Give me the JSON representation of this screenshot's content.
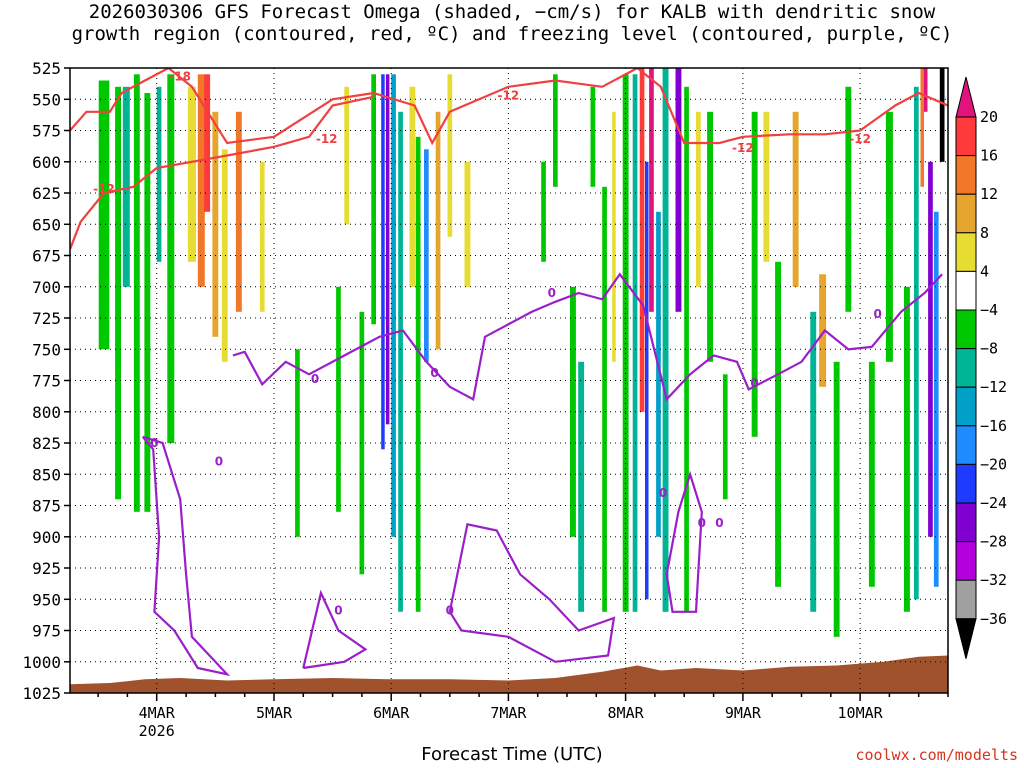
{
  "chart_data": {
    "type": "heatmap",
    "title_line1": "2026030306 GFS Forecast Omega (shaded, −cm/s) for KALB with dendritic snow",
    "title_line2": "growth region (contoured, red, ºC) and freezing level (contoured, purple, ºC)",
    "xlabel": "Forecast Time (UTC)",
    "ylabel": "",
    "credit": "coolwx.com/modelts",
    "y_ticks": [
      "525",
      "550",
      "575",
      "600",
      "625",
      "650",
      "675",
      "700",
      "725",
      "750",
      "775",
      "800",
      "825",
      "850",
      "875",
      "900",
      "925",
      "950",
      "975",
      "1000",
      "1025"
    ],
    "y_range_hpa": [
      525,
      1025
    ],
    "x_range_days": [
      3.26,
      10.75
    ],
    "x_ticks": [
      {
        "label": "4MAR",
        "sub": "2026",
        "day": 4
      },
      {
        "label": "5MAR",
        "sub": "",
        "day": 5
      },
      {
        "label": "6MAR",
        "sub": "",
        "day": 6
      },
      {
        "label": "7MAR",
        "sub": "",
        "day": 7
      },
      {
        "label": "8MAR",
        "sub": "",
        "day": 8
      },
      {
        "label": "9MAR",
        "sub": "",
        "day": 9
      },
      {
        "label": "10MAR",
        "sub": "",
        "day": 10
      }
    ],
    "colorbar": {
      "labels": [
        "20",
        "16",
        "12",
        "8",
        "4",
        "−4",
        "−8",
        "−12",
        "−16",
        "−20",
        "−24",
        "−28",
        "−32",
        "−36"
      ],
      "colors": [
        "#e0147c",
        "#ff3a3a",
        "#f07828",
        "#e6a52c",
        "#e6dc32",
        "#ffffff",
        "#00c800",
        "#00b496",
        "#00a0c8",
        "#1e8cff",
        "#1e3cff",
        "#8000d2",
        "#b400dc",
        "#a0a0a0"
      ]
    },
    "contour_labels_red": [
      "-18",
      "-12",
      "-12",
      "-12",
      "-12",
      "-12"
    ],
    "contour_labels_purple": [
      "0",
      "0",
      "0",
      "0",
      "0",
      "0",
      "0",
      "0",
      "0",
      "0",
      "0",
      "0"
    ],
    "omega_columns": [
      {
        "day": 3.55,
        "width": 0.09,
        "top": 535,
        "bottom": 750,
        "color": "#00c800"
      },
      {
        "day": 3.67,
        "width": 0.05,
        "top": 540,
        "bottom": 870,
        "color": "#00c800"
      },
      {
        "day": 3.74,
        "width": 0.06,
        "top": 540,
        "bottom": 700,
        "color": "#00b496"
      },
      {
        "day": 3.83,
        "width": 0.05,
        "top": 530,
        "bottom": 880,
        "color": "#00c800"
      },
      {
        "day": 3.92,
        "width": 0.05,
        "top": 545,
        "bottom": 880,
        "color": "#00c800"
      },
      {
        "day": 4.02,
        "width": 0.04,
        "top": 540,
        "bottom": 680,
        "color": "#00b496"
      },
      {
        "day": 4.12,
        "width": 0.06,
        "top": 530,
        "bottom": 825,
        "color": "#00c800"
      },
      {
        "day": 4.3,
        "width": 0.07,
        "top": 540,
        "bottom": 680,
        "color": "#e6dc32"
      },
      {
        "day": 4.38,
        "width": 0.06,
        "top": 530,
        "bottom": 700,
        "color": "#f07828"
      },
      {
        "day": 4.43,
        "width": 0.05,
        "top": 530,
        "bottom": 640,
        "color": "#ff3a3a"
      },
      {
        "day": 4.5,
        "width": 0.05,
        "top": 560,
        "bottom": 740,
        "color": "#e6a52c"
      },
      {
        "day": 4.58,
        "width": 0.05,
        "top": 590,
        "bottom": 760,
        "color": "#e6dc32"
      },
      {
        "day": 4.7,
        "width": 0.05,
        "top": 560,
        "bottom": 720,
        "color": "#f07828"
      },
      {
        "day": 4.9,
        "width": 0.04,
        "top": 600,
        "bottom": 720,
        "color": "#e6dc32"
      },
      {
        "day": 5.2,
        "width": 0.04,
        "top": 750,
        "bottom": 900,
        "color": "#00c800"
      },
      {
        "day": 5.55,
        "width": 0.04,
        "top": 700,
        "bottom": 880,
        "color": "#00c800"
      },
      {
        "day": 5.62,
        "width": 0.04,
        "top": 540,
        "bottom": 650,
        "color": "#e6dc32"
      },
      {
        "day": 5.75,
        "width": 0.04,
        "top": 720,
        "bottom": 930,
        "color": "#00c800"
      },
      {
        "day": 5.85,
        "width": 0.04,
        "top": 530,
        "bottom": 730,
        "color": "#00c800"
      },
      {
        "day": 5.93,
        "width": 0.03,
        "top": 530,
        "bottom": 830,
        "color": "#1e3cff"
      },
      {
        "day": 5.97,
        "width": 0.03,
        "top": 530,
        "bottom": 810,
        "color": "#8000d2"
      },
      {
        "day": 6.02,
        "width": 0.04,
        "top": 530,
        "bottom": 900,
        "color": "#00a0c8"
      },
      {
        "day": 6.08,
        "width": 0.04,
        "top": 560,
        "bottom": 960,
        "color": "#00b496"
      },
      {
        "day": 6.18,
        "width": 0.05,
        "top": 540,
        "bottom": 700,
        "color": "#e6dc32"
      },
      {
        "day": 6.23,
        "width": 0.04,
        "top": 580,
        "bottom": 960,
        "color": "#00c800"
      },
      {
        "day": 6.3,
        "width": 0.04,
        "top": 590,
        "bottom": 760,
        "color": "#1e8cff"
      },
      {
        "day": 6.4,
        "width": 0.04,
        "top": 560,
        "bottom": 750,
        "color": "#e6a52c"
      },
      {
        "day": 6.5,
        "width": 0.04,
        "top": 530,
        "bottom": 660,
        "color": "#e6dc32"
      },
      {
        "day": 6.65,
        "width": 0.05,
        "top": 600,
        "bottom": 700,
        "color": "#e6dc32"
      },
      {
        "day": 7.3,
        "width": 0.04,
        "top": 600,
        "bottom": 680,
        "color": "#00c800"
      },
      {
        "day": 7.4,
        "width": 0.04,
        "top": 530,
        "bottom": 620,
        "color": "#00c800"
      },
      {
        "day": 7.55,
        "width": 0.05,
        "top": 700,
        "bottom": 900,
        "color": "#00c800"
      },
      {
        "day": 7.62,
        "width": 0.05,
        "top": 760,
        "bottom": 960,
        "color": "#00b496"
      },
      {
        "day": 7.72,
        "width": 0.04,
        "top": 540,
        "bottom": 620,
        "color": "#00c800"
      },
      {
        "day": 7.82,
        "width": 0.04,
        "top": 620,
        "bottom": 960,
        "color": "#00c800"
      },
      {
        "day": 7.9,
        "width": 0.03,
        "top": 560,
        "bottom": 760,
        "color": "#e6dc32"
      },
      {
        "day": 8.0,
        "width": 0.05,
        "top": 530,
        "bottom": 960,
        "color": "#00c800"
      },
      {
        "day": 8.08,
        "width": 0.04,
        "top": 530,
        "bottom": 960,
        "color": "#00b496"
      },
      {
        "day": 8.14,
        "width": 0.04,
        "top": 525,
        "bottom": 800,
        "color": "#ff3a3a"
      },
      {
        "day": 8.18,
        "width": 0.03,
        "top": 600,
        "bottom": 950,
        "color": "#1e3cff"
      },
      {
        "day": 8.22,
        "width": 0.04,
        "top": 525,
        "bottom": 720,
        "color": "#e0147c"
      },
      {
        "day": 8.28,
        "width": 0.04,
        "top": 640,
        "bottom": 900,
        "color": "#00a0c8"
      },
      {
        "day": 8.34,
        "width": 0.05,
        "top": 525,
        "bottom": 960,
        "color": "#00b496"
      },
      {
        "day": 8.45,
        "width": 0.05,
        "top": 525,
        "bottom": 720,
        "color": "#8000d2"
      },
      {
        "day": 8.52,
        "width": 0.04,
        "top": 540,
        "bottom": 960,
        "color": "#00c800"
      },
      {
        "day": 8.62,
        "width": 0.04,
        "top": 560,
        "bottom": 700,
        "color": "#e6dc32"
      },
      {
        "day": 8.72,
        "width": 0.05,
        "top": 560,
        "bottom": 760,
        "color": "#00c800"
      },
      {
        "day": 8.85,
        "width": 0.04,
        "top": 770,
        "bottom": 870,
        "color": "#00c800"
      },
      {
        "day": 9.1,
        "width": 0.05,
        "top": 560,
        "bottom": 820,
        "color": "#00c800"
      },
      {
        "day": 9.2,
        "width": 0.05,
        "top": 560,
        "bottom": 680,
        "color": "#e6dc32"
      },
      {
        "day": 9.3,
        "width": 0.05,
        "top": 680,
        "bottom": 940,
        "color": "#00c800"
      },
      {
        "day": 9.45,
        "width": 0.05,
        "top": 560,
        "bottom": 700,
        "color": "#e6a52c"
      },
      {
        "day": 9.6,
        "width": 0.05,
        "top": 720,
        "bottom": 960,
        "color": "#00b496"
      },
      {
        "day": 9.68,
        "width": 0.06,
        "top": 690,
        "bottom": 780,
        "color": "#e6a52c"
      },
      {
        "day": 9.8,
        "width": 0.05,
        "top": 760,
        "bottom": 980,
        "color": "#00c800"
      },
      {
        "day": 9.9,
        "width": 0.05,
        "top": 540,
        "bottom": 720,
        "color": "#00c800"
      },
      {
        "day": 10.1,
        "width": 0.05,
        "top": 760,
        "bottom": 940,
        "color": "#00c800"
      },
      {
        "day": 10.25,
        "width": 0.06,
        "top": 560,
        "bottom": 760,
        "color": "#00c800"
      },
      {
        "day": 10.4,
        "width": 0.05,
        "top": 700,
        "bottom": 960,
        "color": "#00c800"
      },
      {
        "day": 10.48,
        "width": 0.04,
        "top": 540,
        "bottom": 950,
        "color": "#00b496"
      },
      {
        "day": 10.53,
        "width": 0.03,
        "top": 525,
        "bottom": 620,
        "color": "#f07828"
      },
      {
        "day": 10.56,
        "width": 0.03,
        "top": 525,
        "bottom": 560,
        "color": "#e0147c"
      },
      {
        "day": 10.6,
        "width": 0.04,
        "top": 600,
        "bottom": 900,
        "color": "#8000d2"
      },
      {
        "day": 10.65,
        "width": 0.04,
        "top": 640,
        "bottom": 940,
        "color": "#1e8cff"
      },
      {
        "day": 10.7,
        "width": 0.04,
        "top": 525,
        "bottom": 600,
        "color": "#000000"
      }
    ],
    "dgz_line1": [
      [
        3.26,
        575
      ],
      [
        3.4,
        560
      ],
      [
        3.6,
        560
      ],
      [
        3.7,
        545
      ],
      [
        3.9,
        535
      ],
      [
        4.1,
        525
      ],
      [
        4.3,
        540
      ],
      [
        4.6,
        585
      ],
      [
        5.0,
        580
      ],
      [
        5.2,
        568
      ],
      [
        5.5,
        550
      ],
      [
        5.85,
        545
      ],
      [
        6.2,
        555
      ],
      [
        6.35,
        585
      ],
      [
        6.5,
        560
      ],
      [
        7.0,
        540
      ],
      [
        7.4,
        535
      ],
      [
        7.8,
        540
      ],
      [
        8.1,
        525
      ],
      [
        8.3,
        540
      ],
      [
        8.5,
        585
      ],
      [
        8.8,
        585
      ],
      [
        9.0,
        580
      ],
      [
        9.4,
        578
      ],
      [
        9.7,
        578
      ],
      [
        10.0,
        575
      ],
      [
        10.3,
        555
      ],
      [
        10.5,
        545
      ],
      [
        10.75,
        555
      ]
    ],
    "dgz_line2": [
      [
        3.26,
        670
      ],
      [
        3.35,
        648
      ],
      [
        3.55,
        625
      ],
      [
        3.8,
        620
      ],
      [
        4.0,
        605
      ],
      [
        4.3,
        600
      ],
      [
        4.6,
        595
      ],
      [
        5.0,
        588
      ],
      [
        5.3,
        580
      ],
      [
        5.5,
        555
      ],
      [
        5.85,
        548
      ]
    ],
    "fz_level": [
      [
        4.65,
        755
      ],
      [
        4.75,
        752
      ],
      [
        4.9,
        778
      ],
      [
        5.1,
        760
      ],
      [
        5.3,
        770
      ],
      [
        5.6,
        755
      ],
      [
        5.9,
        740
      ],
      [
        6.1,
        735
      ],
      [
        6.3,
        760
      ],
      [
        6.5,
        780
      ],
      [
        6.7,
        790
      ],
      [
        6.8,
        740
      ],
      [
        7.0,
        730
      ],
      [
        7.2,
        720
      ],
      [
        7.4,
        712
      ],
      [
        7.6,
        705
      ],
      [
        7.8,
        710
      ],
      [
        7.95,
        690
      ],
      [
        8.15,
        715
      ],
      [
        8.35,
        790
      ],
      [
        8.55,
        770
      ],
      [
        8.75,
        755
      ],
      [
        8.95,
        760
      ],
      [
        9.05,
        782
      ],
      [
        9.3,
        770
      ],
      [
        9.5,
        760
      ],
      [
        9.7,
        735
      ],
      [
        9.9,
        750
      ],
      [
        10.1,
        748
      ],
      [
        10.35,
        720
      ],
      [
        10.55,
        705
      ],
      [
        10.7,
        690
      ]
    ],
    "fz_pockets": [
      [
        [
          3.88,
          820
        ],
        [
          3.97,
          830
        ],
        [
          4.02,
          900
        ],
        [
          3.98,
          960
        ],
        [
          4.15,
          975
        ],
        [
          4.35,
          1005
        ],
        [
          4.6,
          1010
        ],
        [
          4.3,
          980
        ],
        [
          4.25,
          930
        ],
        [
          4.2,
          870
        ],
        [
          4.05,
          825
        ],
        [
          3.88,
          820
        ]
      ],
      [
        [
          5.25,
          1005
        ],
        [
          5.4,
          945
        ],
        [
          5.55,
          975
        ],
        [
          5.78,
          990
        ],
        [
          5.6,
          1000
        ],
        [
          5.25,
          1005
        ]
      ],
      [
        [
          6.5,
          960
        ],
        [
          6.65,
          890
        ],
        [
          6.9,
          895
        ],
        [
          7.1,
          930
        ],
        [
          7.35,
          950
        ],
        [
          7.6,
          975
        ],
        [
          7.9,
          965
        ],
        [
          7.85,
          995
        ],
        [
          7.4,
          1000
        ],
        [
          7.0,
          980
        ],
        [
          6.6,
          975
        ],
        [
          6.5,
          960
        ]
      ],
      [
        [
          8.35,
          930
        ],
        [
          8.45,
          880
        ],
        [
          8.55,
          850
        ],
        [
          8.65,
          880
        ],
        [
          8.6,
          960
        ],
        [
          8.4,
          960
        ],
        [
          8.35,
          930
        ]
      ]
    ],
    "ground_surface": [
      [
        3.26,
        1018
      ],
      [
        3.6,
        1017
      ],
      [
        3.9,
        1014
      ],
      [
        4.2,
        1013
      ],
      [
        4.6,
        1015
      ],
      [
        5.0,
        1014
      ],
      [
        5.5,
        1013
      ],
      [
        6.0,
        1014
      ],
      [
        6.5,
        1014
      ],
      [
        7.0,
        1015
      ],
      [
        7.4,
        1013
      ],
      [
        7.8,
        1008
      ],
      [
        8.1,
        1003
      ],
      [
        8.3,
        1007
      ],
      [
        8.6,
        1005
      ],
      [
        9.0,
        1007
      ],
      [
        9.4,
        1004
      ],
      [
        9.8,
        1003
      ],
      [
        10.2,
        1000
      ],
      [
        10.5,
        996
      ],
      [
        10.75,
        995
      ]
    ]
  }
}
